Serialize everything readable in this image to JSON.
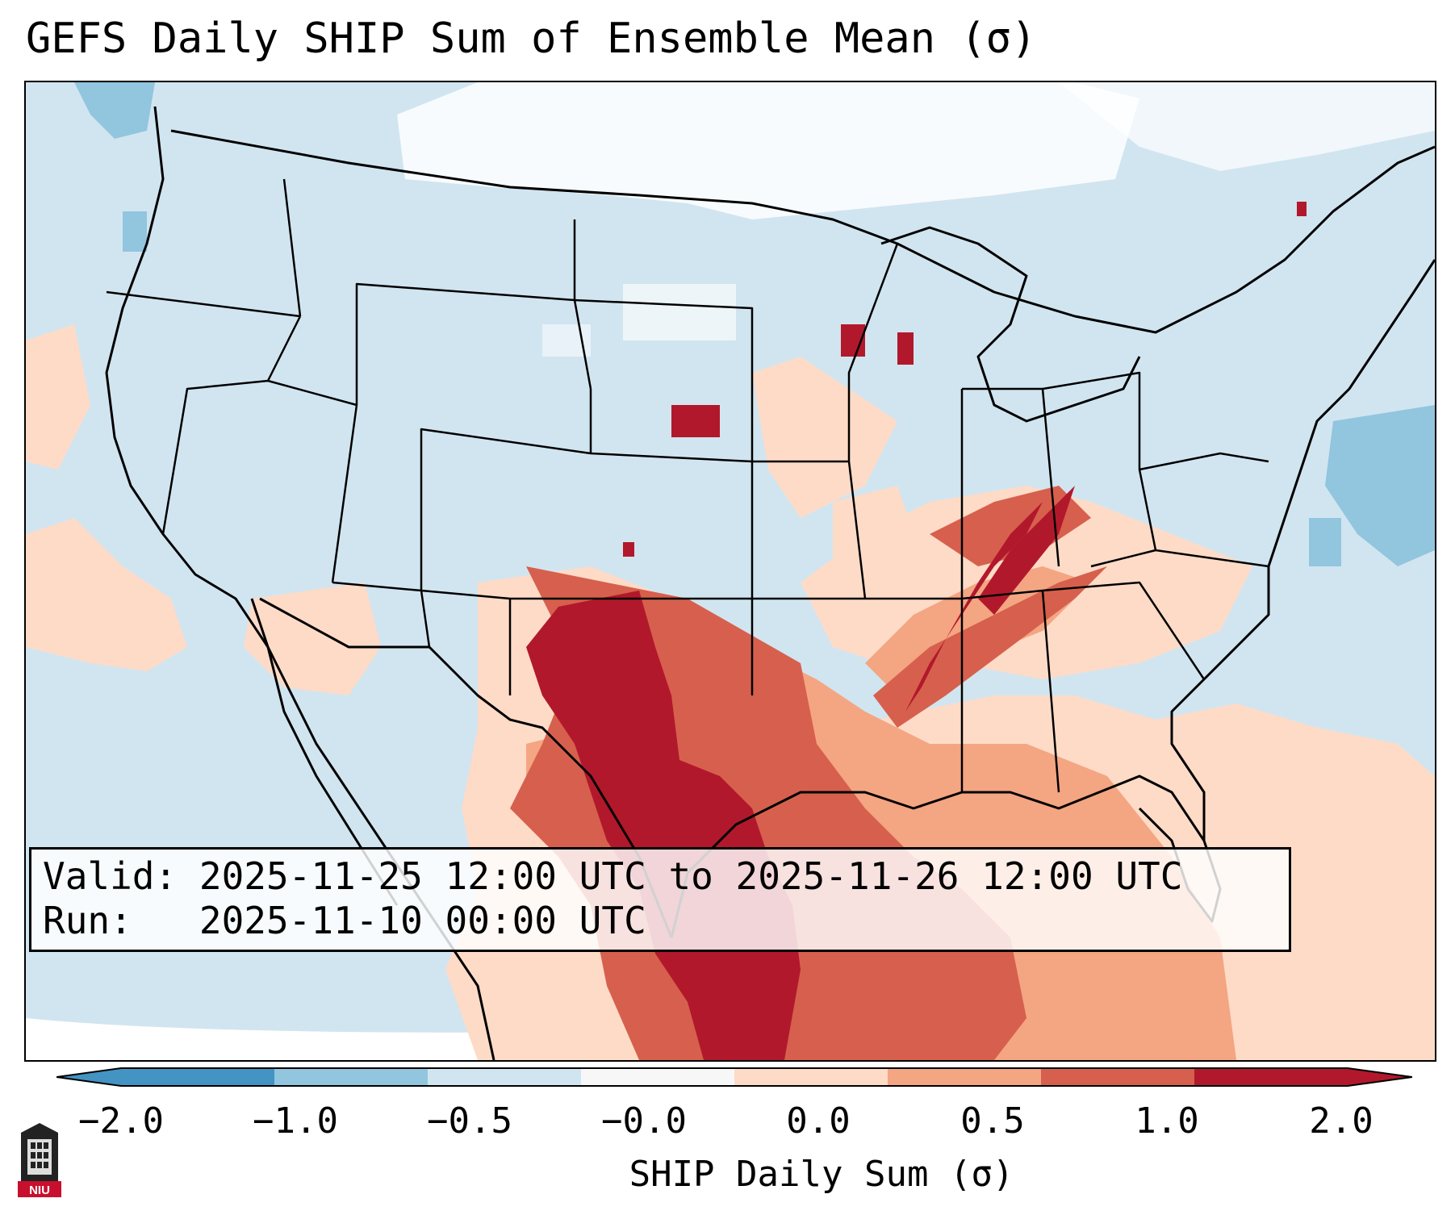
{
  "title": "GEFS Daily SHIP Sum of Ensemble Mean (σ)",
  "info": {
    "valid_label": "Valid:",
    "valid_value": "2025-11-25 12:00 UTC to 2025-11-26 12:00 UTC",
    "run_label": "Run:",
    "run_value": "2025-11-10 00:00 UTC"
  },
  "colorbar": {
    "label": "SHIP Daily Sum (σ)",
    "ticks": [
      "−2.0",
      "−1.0",
      "−0.5",
      "−0.0",
      "0.0",
      "0.5",
      "1.0",
      "2.0"
    ],
    "colors": [
      "#4393c3",
      "#92c5de",
      "#d1e5f0",
      "#f7f7f7",
      "#fddbc7",
      "#f4a582",
      "#d6604d",
      "#b2182b"
    ]
  },
  "logo": {
    "text": "NIU",
    "icon": "university-tower-icon"
  },
  "map": {
    "background_color": "#d1e5f0",
    "land_region": "Contiguous United States, southern Canada, northern Mexico"
  }
}
